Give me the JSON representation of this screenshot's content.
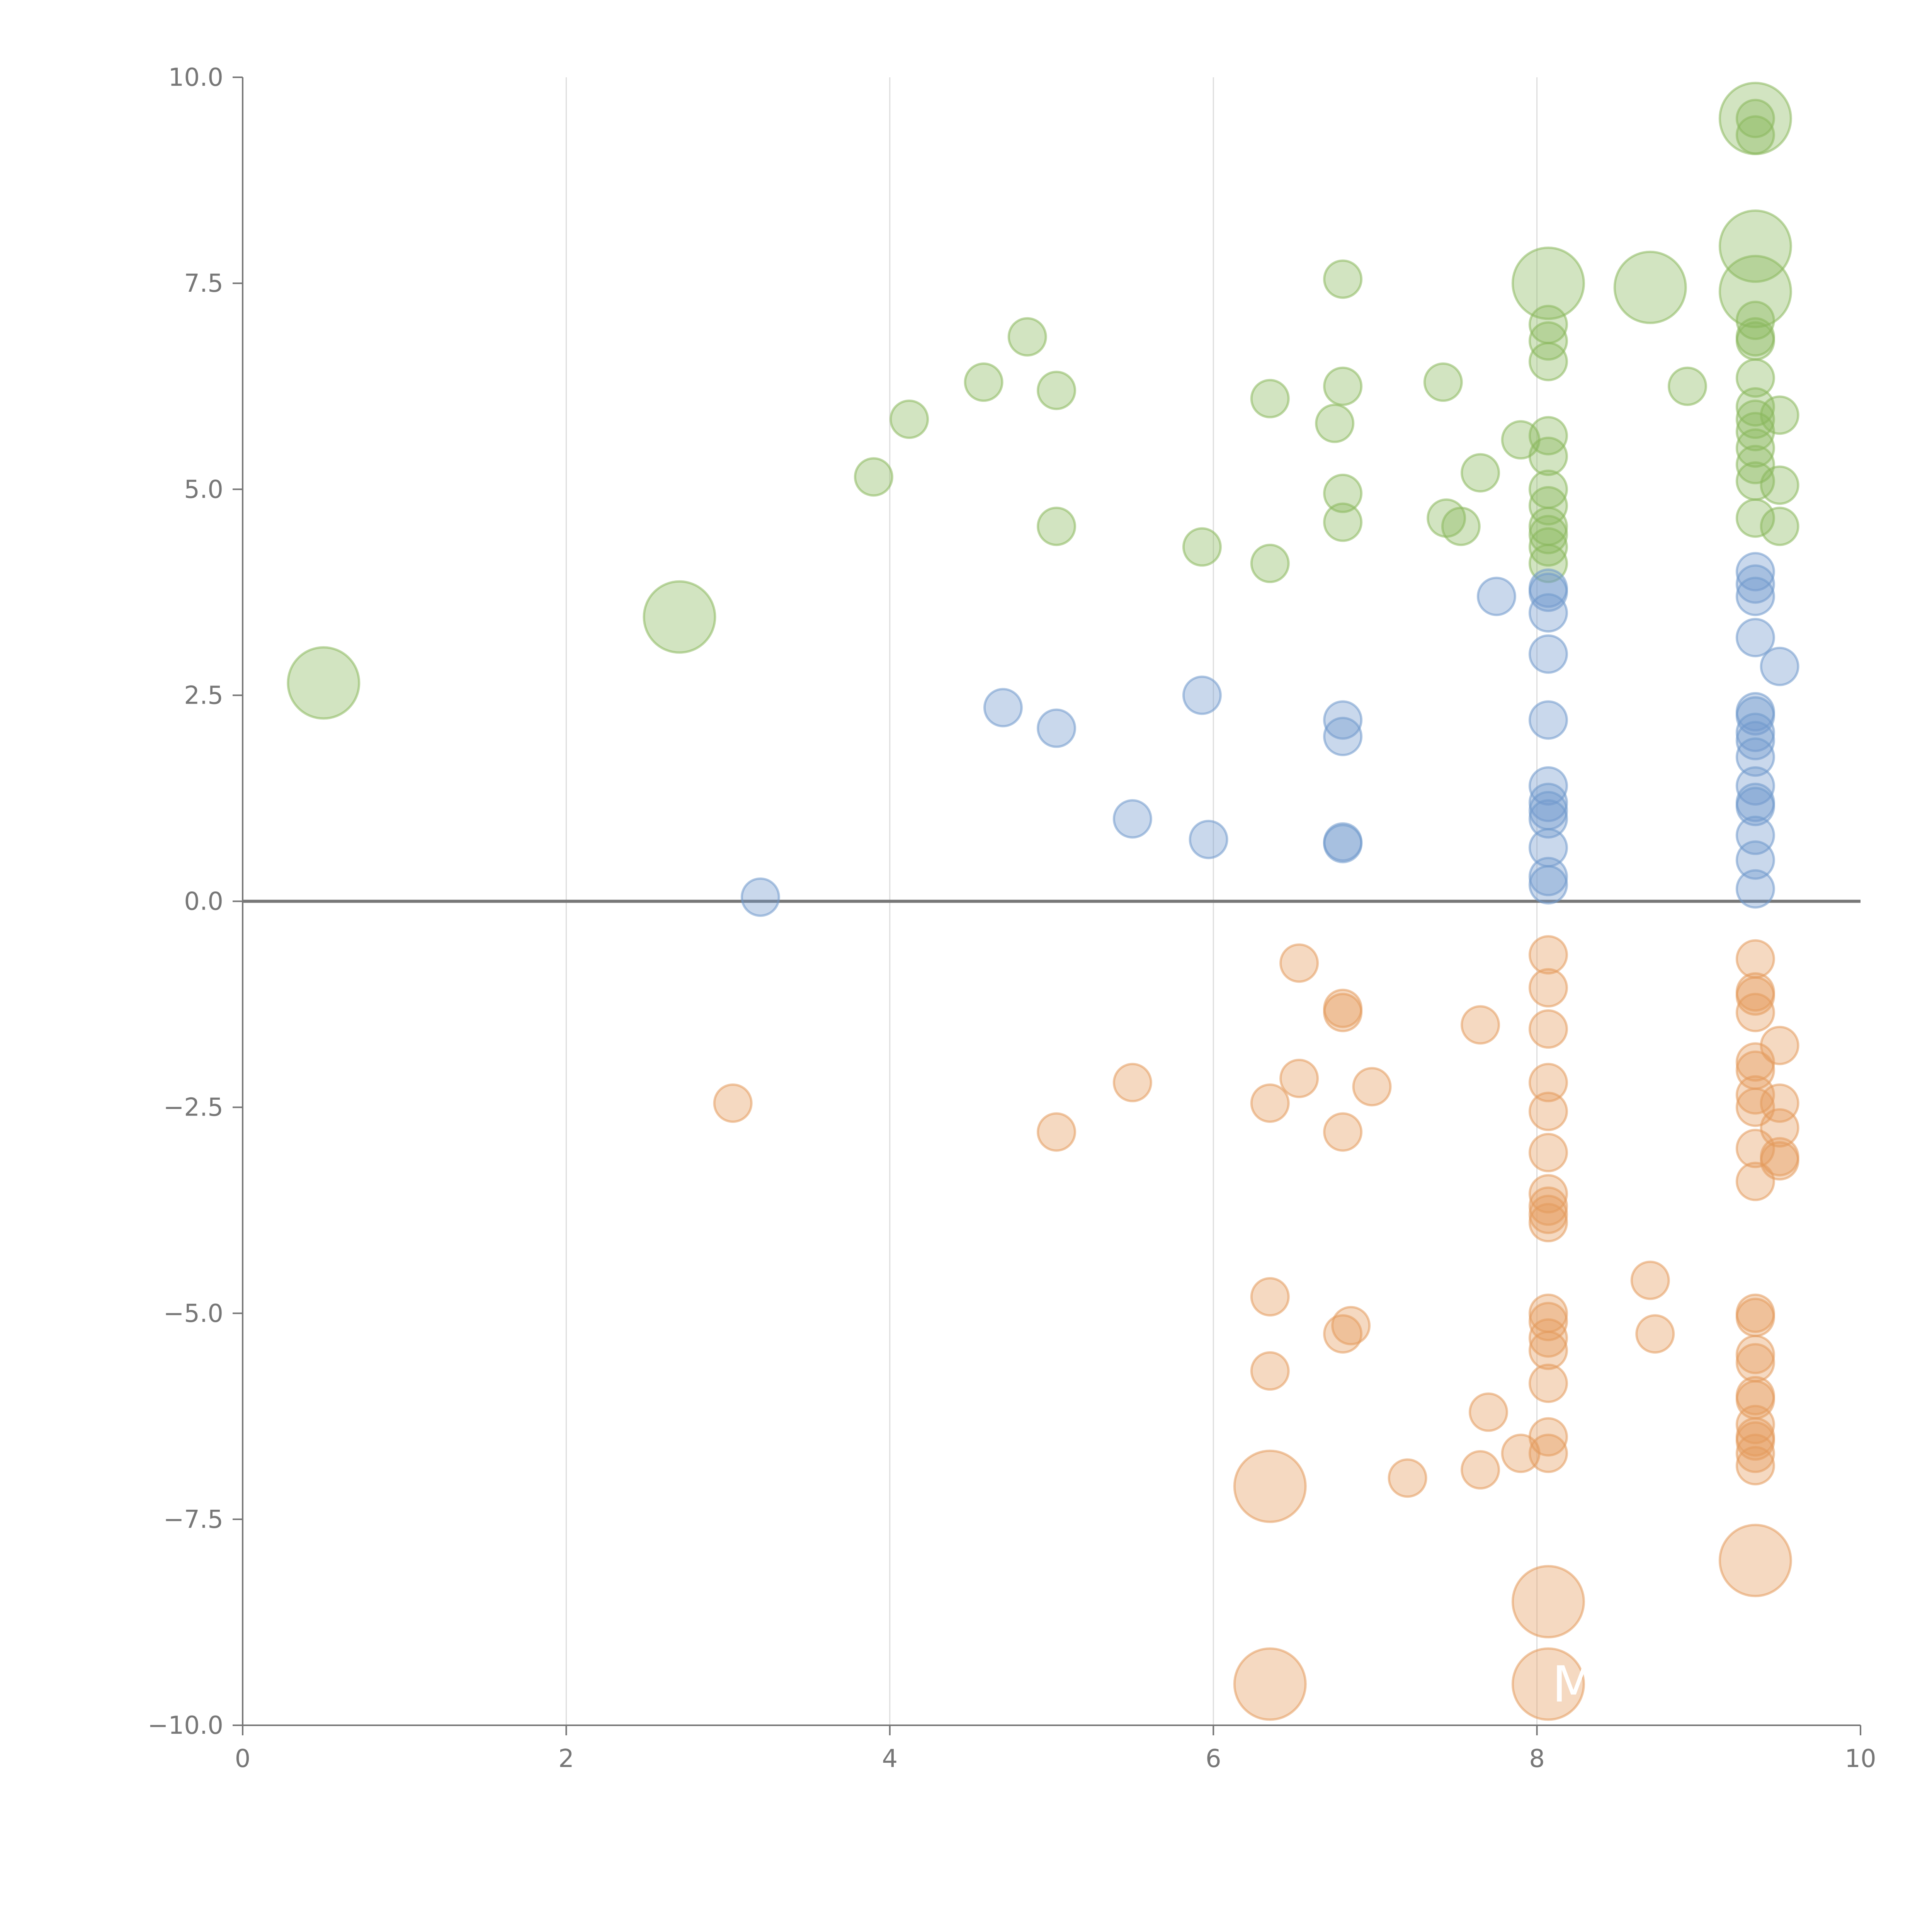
{
  "chart_data": {
    "type": "scatter",
    "title": "",
    "xlabel": "",
    "ylabel": "",
    "xlim": [
      0,
      10
    ],
    "ylim": [
      -10,
      10
    ],
    "grid": "vertical-lines",
    "zero_line": true,
    "x_ticks": [
      "0",
      "2",
      "4",
      "6",
      "8",
      "10"
    ],
    "x_tick_values": [
      0,
      2,
      4,
      6,
      8,
      10
    ],
    "y_ticks": [
      "10.0",
      "7.5",
      "5.0",
      "2.5",
      "0.0",
      "−2.5",
      "−5.0",
      "−7.5",
      "−10.0"
    ],
    "y_tick_values": [
      10,
      7.5,
      5,
      2.5,
      0,
      -2.5,
      -5,
      -7.5,
      -10
    ],
    "series": [
      {
        "name": "green",
        "color": "#8ab85c",
        "points": [
          [
            0.5,
            2.65,
            1
          ],
          [
            2.7,
            3.45,
            1
          ],
          [
            3.9,
            5.15,
            0
          ],
          [
            4.12,
            5.85,
            0
          ],
          [
            4.58,
            6.3,
            0
          ],
          [
            4.85,
            6.85,
            0
          ],
          [
            5.03,
            6.2,
            0
          ],
          [
            5.03,
            4.55,
            0
          ],
          [
            5.93,
            4.3,
            0
          ],
          [
            6.35,
            6.1,
            0
          ],
          [
            6.35,
            4.1,
            0
          ],
          [
            6.75,
            5.8,
            0
          ],
          [
            6.8,
            7.55,
            0
          ],
          [
            6.8,
            6.25,
            0
          ],
          [
            6.8,
            4.95,
            0
          ],
          [
            6.8,
            4.6,
            0
          ],
          [
            7.42,
            6.3,
            0
          ],
          [
            7.44,
            4.65,
            0
          ],
          [
            7.53,
            4.55,
            0
          ],
          [
            7.65,
            5.2,
            0
          ],
          [
            7.9,
            5.6,
            0
          ],
          [
            8.07,
            7.5,
            1
          ],
          [
            8.07,
            7.0,
            0
          ],
          [
            8.07,
            6.8,
            0
          ],
          [
            8.07,
            6.55,
            0
          ],
          [
            8.07,
            5.65,
            0
          ],
          [
            8.07,
            5.4,
            0
          ],
          [
            8.07,
            5.0,
            0
          ],
          [
            8.07,
            4.8,
            0
          ],
          [
            8.07,
            4.55,
            0
          ],
          [
            8.07,
            4.45,
            0
          ],
          [
            8.07,
            4.3,
            0
          ],
          [
            8.07,
            4.1,
            0
          ],
          [
            8.7,
            7.45,
            1
          ],
          [
            8.93,
            6.25,
            0
          ],
          [
            9.35,
            9.5,
            1
          ],
          [
            9.35,
            9.5,
            0
          ],
          [
            9.35,
            9.3,
            0
          ],
          [
            9.35,
            7.95,
            1
          ],
          [
            9.35,
            7.4,
            1
          ],
          [
            9.35,
            7.05,
            0
          ],
          [
            9.35,
            6.85,
            0
          ],
          [
            9.35,
            6.8,
            0
          ],
          [
            9.35,
            6.35,
            0
          ],
          [
            9.35,
            6.0,
            0
          ],
          [
            9.35,
            5.85,
            0
          ],
          [
            9.35,
            5.7,
            0
          ],
          [
            9.35,
            5.5,
            0
          ],
          [
            9.35,
            5.3,
            0
          ],
          [
            9.35,
            5.1,
            0
          ],
          [
            9.35,
            4.65,
            0
          ],
          [
            9.5,
            5.9,
            0
          ],
          [
            9.5,
            5.05,
            0
          ],
          [
            9.5,
            4.55,
            0
          ]
        ]
      },
      {
        "name": "blue",
        "color": "#7099cc",
        "points": [
          [
            3.2,
            0.05,
            0
          ],
          [
            4.7,
            2.35,
            0
          ],
          [
            5.03,
            2.1,
            0
          ],
          [
            5.5,
            1.0,
            0
          ],
          [
            5.93,
            2.5,
            0
          ],
          [
            5.97,
            0.75,
            0
          ],
          [
            6.8,
            2.2,
            0
          ],
          [
            6.8,
            2.0,
            0
          ],
          [
            6.8,
            0.72,
            0
          ],
          [
            6.8,
            0.7,
            0
          ],
          [
            7.75,
            3.7,
            0
          ],
          [
            8.07,
            3.8,
            0
          ],
          [
            8.07,
            3.75,
            0
          ],
          [
            8.07,
            3.5,
            0
          ],
          [
            8.07,
            3.0,
            0
          ],
          [
            8.07,
            2.2,
            0
          ],
          [
            8.07,
            1.4,
            0
          ],
          [
            8.07,
            1.2,
            0
          ],
          [
            8.07,
            1.1,
            0
          ],
          [
            8.07,
            1.0,
            0
          ],
          [
            8.07,
            0.65,
            0
          ],
          [
            8.07,
            0.3,
            0
          ],
          [
            8.07,
            0.2,
            0
          ],
          [
            9.35,
            4.0,
            0
          ],
          [
            9.35,
            3.85,
            0
          ],
          [
            9.35,
            3.7,
            0
          ],
          [
            9.35,
            3.2,
            0
          ],
          [
            9.35,
            2.3,
            0
          ],
          [
            9.35,
            2.25,
            0
          ],
          [
            9.35,
            2.05,
            0
          ],
          [
            9.35,
            1.95,
            0
          ],
          [
            9.35,
            1.75,
            0
          ],
          [
            9.35,
            1.4,
            0
          ],
          [
            9.35,
            1.2,
            0
          ],
          [
            9.35,
            1.15,
            0
          ],
          [
            9.35,
            0.8,
            0
          ],
          [
            9.35,
            0.5,
            0
          ],
          [
            9.35,
            0.15,
            0
          ],
          [
            9.5,
            2.85,
            0
          ]
        ]
      },
      {
        "name": "orange",
        "color": "#e49b5c",
        "points": [
          [
            3.03,
            -2.45,
            0
          ],
          [
            5.03,
            -2.8,
            0
          ],
          [
            5.5,
            -2.2,
            0
          ],
          [
            6.35,
            -2.45,
            0
          ],
          [
            6.35,
            -4.8,
            0
          ],
          [
            6.35,
            -5.7,
            0
          ],
          [
            6.35,
            -7.1,
            1
          ],
          [
            6.35,
            -9.5,
            1
          ],
          [
            6.53,
            -0.75,
            0
          ],
          [
            6.53,
            -2.15,
            0
          ],
          [
            6.8,
            -1.3,
            0
          ],
          [
            6.8,
            -1.35,
            0
          ],
          [
            6.8,
            -2.8,
            0
          ],
          [
            6.8,
            -5.25,
            0
          ],
          [
            6.85,
            -5.15,
            0
          ],
          [
            6.98,
            -2.25,
            0
          ],
          [
            7.2,
            -7.0,
            0
          ],
          [
            7.65,
            -1.5,
            0
          ],
          [
            7.65,
            -6.9,
            0
          ],
          [
            7.7,
            -6.2,
            0
          ],
          [
            7.9,
            -6.7,
            0
          ],
          [
            8.07,
            -0.65,
            0
          ],
          [
            8.07,
            -1.05,
            0
          ],
          [
            8.07,
            -1.55,
            0
          ],
          [
            8.07,
            -2.2,
            0
          ],
          [
            8.07,
            -2.55,
            0
          ],
          [
            8.07,
            -3.05,
            0
          ],
          [
            8.07,
            -3.55,
            0
          ],
          [
            8.07,
            -3.7,
            0
          ],
          [
            8.07,
            -3.8,
            0
          ],
          [
            8.07,
            -3.9,
            0
          ],
          [
            8.07,
            -5.0,
            0
          ],
          [
            8.07,
            -5.1,
            0
          ],
          [
            8.07,
            -5.3,
            0
          ],
          [
            8.07,
            -5.45,
            0
          ],
          [
            8.07,
            -5.85,
            0
          ],
          [
            8.07,
            -6.5,
            0
          ],
          [
            8.07,
            -6.7,
            0
          ],
          [
            8.07,
            -8.5,
            1
          ],
          [
            8.07,
            -9.5,
            1
          ],
          [
            8.7,
            -4.6,
            0
          ],
          [
            8.73,
            -5.25,
            0
          ],
          [
            9.35,
            -0.7,
            0
          ],
          [
            9.35,
            -1.1,
            0
          ],
          [
            9.35,
            -1.15,
            0
          ],
          [
            9.35,
            -1.35,
            0
          ],
          [
            9.35,
            -1.95,
            0
          ],
          [
            9.35,
            -2.05,
            0
          ],
          [
            9.35,
            -2.35,
            0
          ],
          [
            9.35,
            -2.5,
            0
          ],
          [
            9.35,
            -3.0,
            0
          ],
          [
            9.35,
            -3.4,
            0
          ],
          [
            9.35,
            -5.0,
            0
          ],
          [
            9.35,
            -5.05,
            0
          ],
          [
            9.35,
            -5.5,
            0
          ],
          [
            9.35,
            -5.6,
            0
          ],
          [
            9.35,
            -6.0,
            0
          ],
          [
            9.35,
            -6.05,
            0
          ],
          [
            9.35,
            -6.35,
            0
          ],
          [
            9.35,
            -6.5,
            0
          ],
          [
            9.35,
            -6.55,
            0
          ],
          [
            9.35,
            -6.7,
            0
          ],
          [
            9.35,
            -6.85,
            0
          ],
          [
            9.35,
            -8.0,
            1
          ],
          [
            9.5,
            -1.75,
            0
          ],
          [
            9.5,
            -2.45,
            0
          ],
          [
            9.5,
            -2.75,
            0
          ],
          [
            9.5,
            -3.1,
            0
          ],
          [
            9.5,
            -3.15,
            0
          ]
        ]
      }
    ],
    "annotations": [
      {
        "text": "M",
        "x": 8.07,
        "y": -9.5
      }
    ]
  }
}
